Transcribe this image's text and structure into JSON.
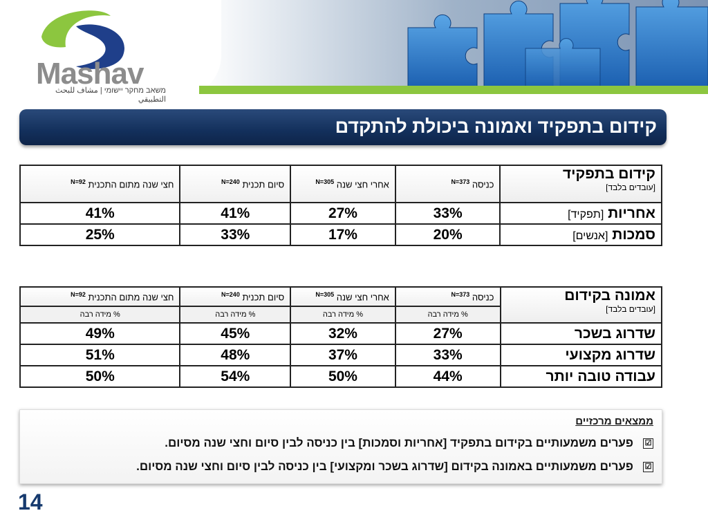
{
  "header": {
    "logo_name": "Mashav",
    "logo_subtitle": "משאב מחקר יישומי | مشاف للبحث التطبيقي",
    "image_icon": "puzzle-pieces-image",
    "accent_green": "#8cc63f",
    "banner_color": "#13305c"
  },
  "title": "קידום בתפקיד ואמונה ביכולת להתקדם",
  "table1": {
    "corner_title": "קידום בתפקיד",
    "corner_sub": "[עובדים בלבד]",
    "columns": [
      {
        "label": "כניסה",
        "n": "N=373"
      },
      {
        "label": "אחרי חצי שנה",
        "n": "N=305"
      },
      {
        "label": "סיום תכנית",
        "n": "N=240"
      },
      {
        "label": "חצי שנה מתום התכנית",
        "n": "N=92"
      }
    ],
    "rows": [
      {
        "label": "אחריות",
        "bracket": "[תפקיד]",
        "values": [
          "33%",
          "27%",
          "41%",
          "41%"
        ]
      },
      {
        "label": "סמכות",
        "bracket": "[אנשים]",
        "values": [
          "20%",
          "17%",
          "33%",
          "25%"
        ]
      }
    ]
  },
  "table2": {
    "corner_title": "אמונה בקידום",
    "corner_sub": "[עובדים בלבד]",
    "columns": [
      {
        "label": "כניסה",
        "n": "N=373"
      },
      {
        "label": "אחרי חצי שנה",
        "n": "N=305"
      },
      {
        "label": "סיום תכנית",
        "n": "N=240"
      },
      {
        "label": "חצי שנה מתום התכנית",
        "n": "N=92"
      }
    ],
    "subheader": "% מידה רבה",
    "rows": [
      {
        "label": "שדרוג בשכר",
        "values": [
          "27%",
          "32%",
          "45%",
          "49%"
        ]
      },
      {
        "label": "שדרוג מקצועי",
        "values": [
          "33%",
          "37%",
          "48%",
          "51%"
        ]
      },
      {
        "label": "עבודה טובה יותר",
        "values": [
          "44%",
          "50%",
          "54%",
          "50%"
        ]
      }
    ]
  },
  "findings": {
    "title": "ממצאים מרכזיים",
    "check_glyph": "☑",
    "items": [
      "פערים משמעותיים בקידום בתפקיד [אחריות וסמכות] בין כניסה לבין סיום וחצי שנה מסיום.",
      "פערים משמעותיים באמונה בקידום [שדרוג בשכר ומקצועי] בין כניסה לבין סיום וחצי שנה מסיום."
    ]
  },
  "page_number": "14"
}
